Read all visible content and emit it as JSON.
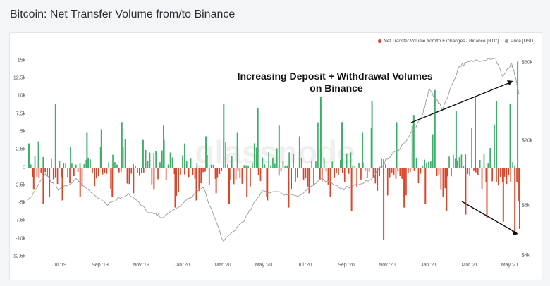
{
  "title": "Bitcoin: Net Transfer Volume from/to Binance",
  "watermark": "glassnode",
  "colors": {
    "positive": "#3fae6a",
    "negative": "#d9472b",
    "price": "#9a9a9a",
    "background": "#ffffff"
  },
  "chart_data": {
    "type": "bar",
    "title": "Bitcoin: Net Transfer Volume from/to Binance",
    "legend_position": "top-right",
    "grid": false,
    "series": [
      {
        "name": "Net Transfer Volume from/to Exchanges - Binance [BTC]",
        "type": "bar",
        "axis": "left"
      },
      {
        "name": "Price [USD]",
        "type": "line",
        "axis": "right",
        "scale": "log"
      }
    ],
    "x_range": [
      "2019-06-01",
      "2021-05-20"
    ],
    "x_ticks": [
      "Jul '19",
      "Sep '19",
      "Nov '19",
      "Jan '20",
      "Mar '20",
      "May '20",
      "Jul '20",
      "Sep '20",
      "Nov '20",
      "Jan '21",
      "Mar '21",
      "May '21"
    ],
    "y_left_ticks": [
      "15k",
      "12.5k",
      "10k",
      "7.5k",
      "5k",
      "2.5k",
      "0",
      "-2.5k",
      "-5k",
      "-7.5k",
      "-10k",
      "-12.5k"
    ],
    "y_left_range": [
      -12500,
      15000
    ],
    "y_right_ticks": [
      "$60k",
      "$20k",
      "$8k",
      "$4k"
    ],
    "y_right_range": [
      4000,
      60000
    ],
    "bar_points": [
      [
        "2019-06-01",
        3500
      ],
      [
        "2019-06-08",
        -3000
      ],
      [
        "2019-06-15",
        3800
      ],
      [
        "2019-06-22",
        -5000
      ],
      [
        "2019-07-01",
        -4000
      ],
      [
        "2019-07-10",
        9000
      ],
      [
        "2019-07-20",
        -4500
      ],
      [
        "2019-08-01",
        3000
      ],
      [
        "2019-08-15",
        -4000
      ],
      [
        "2019-08-25",
        5000
      ],
      [
        "2019-09-05",
        -2500
      ],
      [
        "2019-09-15",
        5500
      ],
      [
        "2019-10-01",
        -4000
      ],
      [
        "2019-10-15",
        6500
      ],
      [
        "2019-11-01",
        -3500
      ],
      [
        "2019-11-15",
        4000
      ],
      [
        "2019-12-01",
        -3000
      ],
      [
        "2019-12-15",
        6000
      ],
      [
        "2020-01-01",
        -5500
      ],
      [
        "2020-01-15",
        3500
      ],
      [
        "2020-02-01",
        -4500
      ],
      [
        "2020-02-15",
        4500
      ],
      [
        "2020-03-01",
        -3500
      ],
      [
        "2020-03-12",
        9000
      ],
      [
        "2020-03-20",
        -5000
      ],
      [
        "2020-04-01",
        5000
      ],
      [
        "2020-04-15",
        -4000
      ],
      [
        "2020-05-01",
        8500
      ],
      [
        "2020-05-15",
        -4500
      ],
      [
        "2020-06-01",
        6000
      ],
      [
        "2020-06-15",
        -5500
      ],
      [
        "2020-07-01",
        4500
      ],
      [
        "2020-07-15",
        -3500
      ],
      [
        "2020-08-01",
        10000
      ],
      [
        "2020-08-15",
        -4000
      ],
      [
        "2020-09-01",
        6500
      ],
      [
        "2020-09-15",
        -6000
      ],
      [
        "2020-10-01",
        5000
      ],
      [
        "2020-10-15",
        9500
      ],
      [
        "2020-11-01",
        -10000
      ],
      [
        "2020-11-20",
        6500
      ],
      [
        "2020-12-01",
        -5500
      ],
      [
        "2020-12-15",
        7500
      ],
      [
        "2021-01-01",
        -5000
      ],
      [
        "2021-01-15",
        11000
      ],
      [
        "2021-02-01",
        -6000
      ],
      [
        "2021-02-15",
        8000
      ],
      [
        "2021-03-01",
        -6500
      ],
      [
        "2021-03-15",
        10000
      ],
      [
        "2021-04-01",
        -7000
      ],
      [
        "2021-04-15",
        9500
      ],
      [
        "2021-04-25",
        -7500
      ],
      [
        "2021-05-05",
        9000
      ],
      [
        "2021-05-12",
        -9000
      ],
      [
        "2021-05-16",
        15000
      ],
      [
        "2021-05-19",
        -8500
      ]
    ],
    "price_points": [
      [
        "2019-06-01",
        8500
      ],
      [
        "2019-06-26",
        12500
      ],
      [
        "2019-07-15",
        10000
      ],
      [
        "2019-08-10",
        11500
      ],
      [
        "2019-09-25",
        8200
      ],
      [
        "2019-10-26",
        9500
      ],
      [
        "2019-11-25",
        7200
      ],
      [
        "2019-12-18",
        6800
      ],
      [
        "2020-02-12",
        10300
      ],
      [
        "2020-03-13",
        4800
      ],
      [
        "2020-04-15",
        6800
      ],
      [
        "2020-05-08",
        9900
      ],
      [
        "2020-06-30",
        9200
      ],
      [
        "2020-08-02",
        11500
      ],
      [
        "2020-09-05",
        10200
      ],
      [
        "2020-10-15",
        11500
      ],
      [
        "2020-11-05",
        15000
      ],
      [
        "2020-12-01",
        19000
      ],
      [
        "2020-12-27",
        27000
      ],
      [
        "2021-01-08",
        41000
      ],
      [
        "2021-01-27",
        31000
      ],
      [
        "2021-02-21",
        57000
      ],
      [
        "2021-03-13",
        61000
      ],
      [
        "2021-04-14",
        64000
      ],
      [
        "2021-04-25",
        49000
      ],
      [
        "2021-05-08",
        58000
      ],
      [
        "2021-05-13",
        50000
      ],
      [
        "2021-05-19",
        38000
      ]
    ],
    "annotations": [
      {
        "text": "Increasing Deposit + Withdrawal Volumes on Binance"
      }
    ]
  }
}
